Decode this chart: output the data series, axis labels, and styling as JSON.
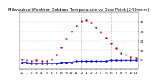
{
  "title": "Milwaukee Weather Outdoor Temperature vs Dew Point (24 Hours)",
  "temp_color": "#cc0000",
  "dew_color": "#0000cc",
  "background_color": "#ffffff",
  "grid_color": "#999999",
  "ylim": [
    -5,
    55
  ],
  "ytick_values": [
    5,
    15,
    25,
    35,
    45
  ],
  "ytick_labels": [
    "5",
    "15",
    "25",
    "35",
    "45"
  ],
  "hours": [
    0,
    1,
    2,
    3,
    4,
    5,
    6,
    7,
    8,
    9,
    10,
    11,
    12,
    13,
    14,
    15,
    16,
    17,
    18,
    19,
    20,
    21,
    22,
    23
  ],
  "temperature": [
    5,
    4,
    3,
    4,
    3,
    3,
    5,
    10,
    18,
    27,
    35,
    41,
    46,
    47,
    44,
    39,
    34,
    28,
    22,
    17,
    12,
    10,
    8,
    7
  ],
  "dew_point": [
    2,
    2,
    1,
    1,
    1,
    1,
    1,
    1,
    2,
    2,
    2,
    3,
    3,
    3,
    3,
    3,
    3,
    3,
    4,
    4,
    4,
    4,
    4,
    4
  ],
  "xtick_positions": [
    0,
    1,
    2,
    3,
    4,
    5,
    6,
    7,
    8,
    9,
    10,
    11,
    12,
    13,
    14,
    15,
    16,
    17,
    18,
    19,
    20,
    21,
    22,
    23
  ],
  "xtick_labels": [
    "12",
    "1",
    "2",
    "3",
    "4",
    "5",
    "6",
    "7",
    "8",
    "9",
    "10",
    "11",
    "12",
    "1",
    "2",
    "3",
    "4",
    "5",
    "6",
    "7",
    "8",
    "9",
    "10",
    "11"
  ],
  "vline_positions": [
    6,
    12,
    18
  ],
  "title_fontsize": 3.8,
  "tick_fontsize": 3.2,
  "marker_size": 1.5
}
